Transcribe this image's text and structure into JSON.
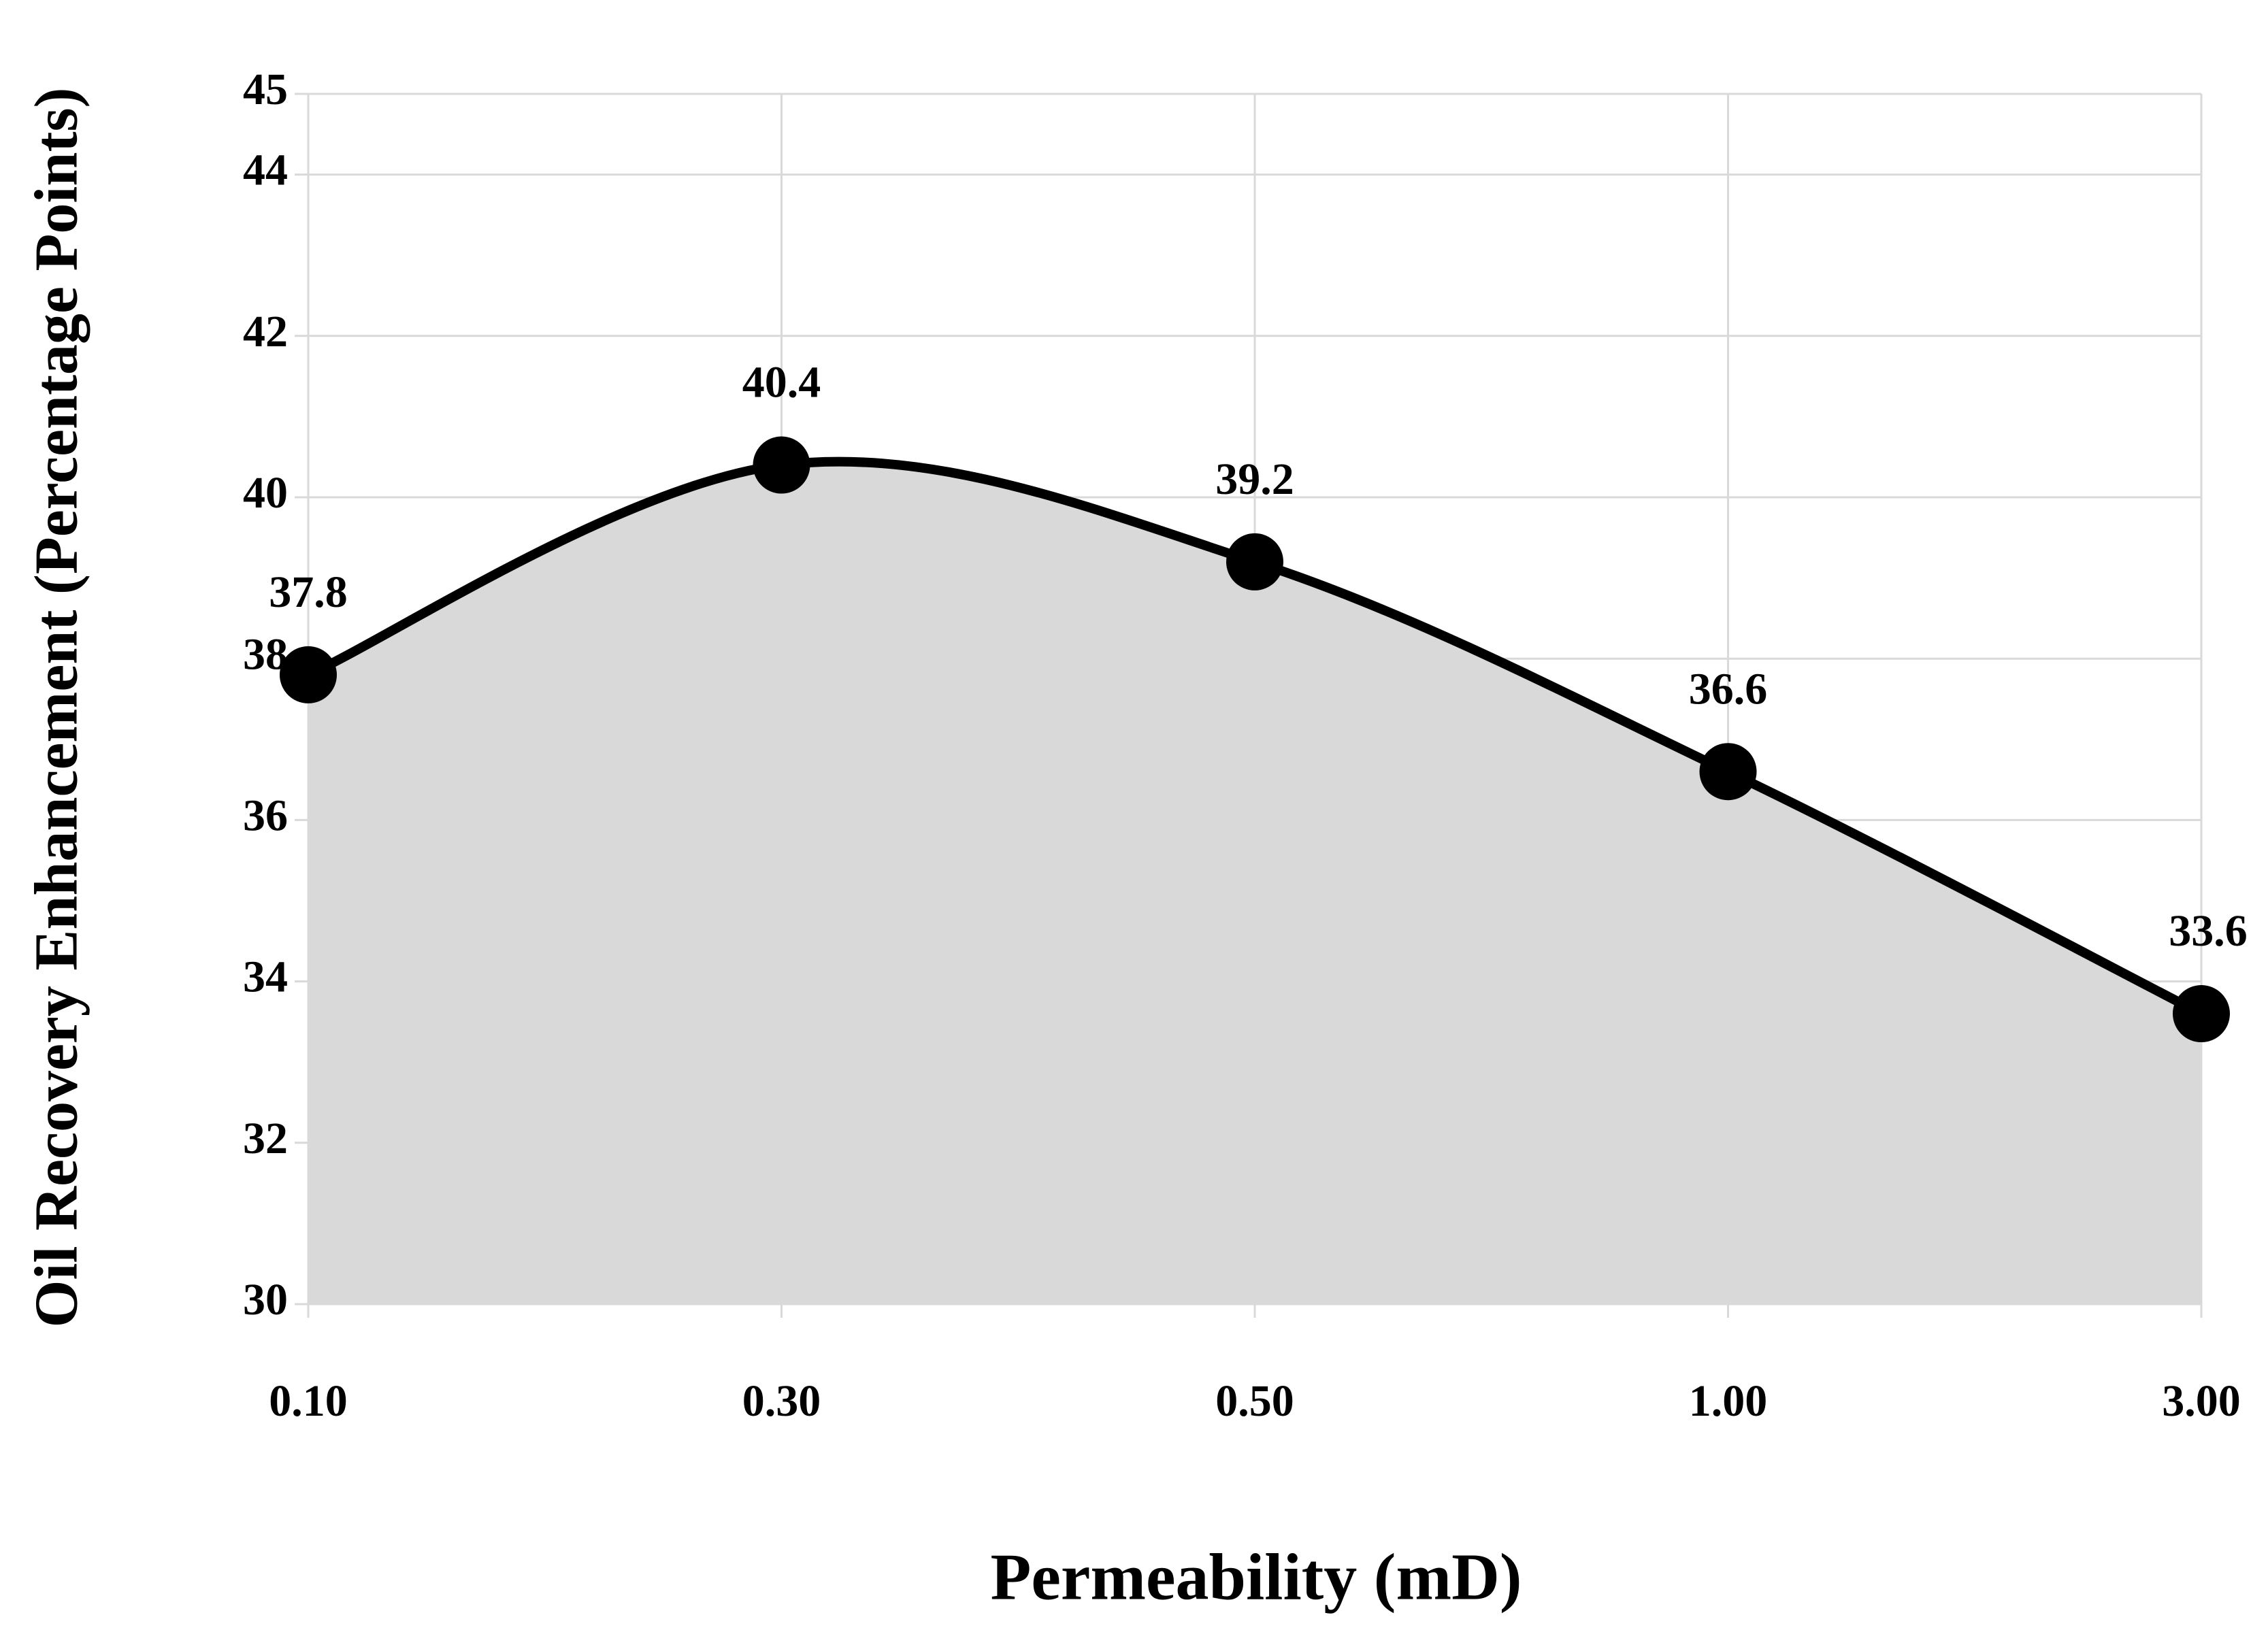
{
  "chart_data": {
    "type": "area",
    "x_label": "Permeability (mD)",
    "y_label": "Oil Recovery Enhancement (Percentage Points)",
    "categories": [
      "0.10",
      "0.30",
      "0.50",
      "1.00",
      "3.00"
    ],
    "values": [
      37.8,
      40.4,
      39.2,
      36.6,
      33.6
    ],
    "line_color": "#000000",
    "fill_color": "#d9d9d9",
    "smooth": true,
    "markers": true,
    "grid": true,
    "ylim": [
      30,
      45
    ],
    "yticks": [
      30,
      32,
      34,
      36,
      38,
      40,
      42,
      44,
      45
    ]
  }
}
